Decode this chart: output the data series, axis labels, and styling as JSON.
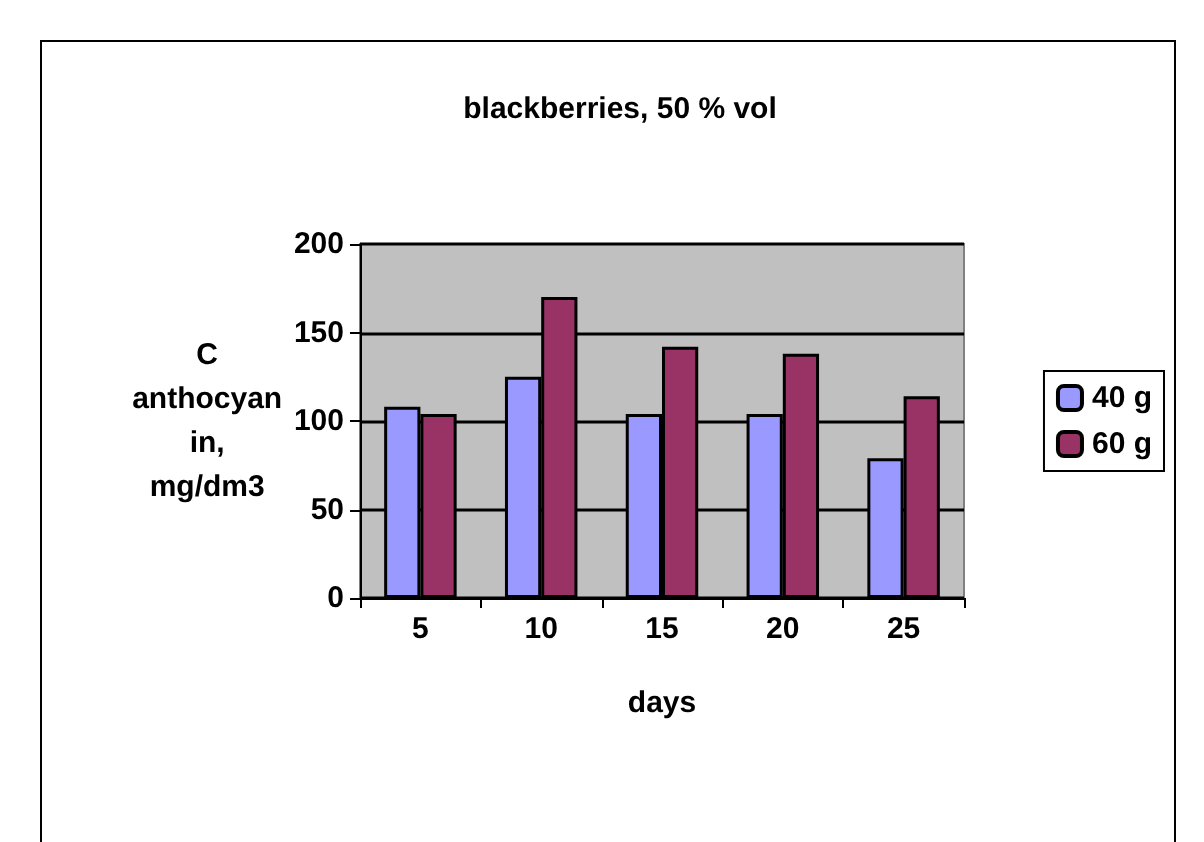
{
  "chart_data": {
    "type": "bar",
    "title": "blackberries, 50 % vol",
    "xlabel": "days",
    "ylabel": "C\nanthocyan\nin,\nmg/dm3",
    "categories": [
      "5",
      "10",
      "15",
      "20",
      "25"
    ],
    "series": [
      {
        "name": "40 g",
        "color": "#9999ff",
        "values": [
          108,
          125,
          104,
          104,
          79
        ]
      },
      {
        "name": "60 g",
        "color": "#993366",
        "values": [
          104,
          170,
          142,
          138,
          114
        ]
      }
    ],
    "ylim": [
      0,
      200
    ],
    "yticks": [
      0,
      50,
      100,
      150,
      200
    ],
    "grid": "y",
    "legend": "right"
  }
}
